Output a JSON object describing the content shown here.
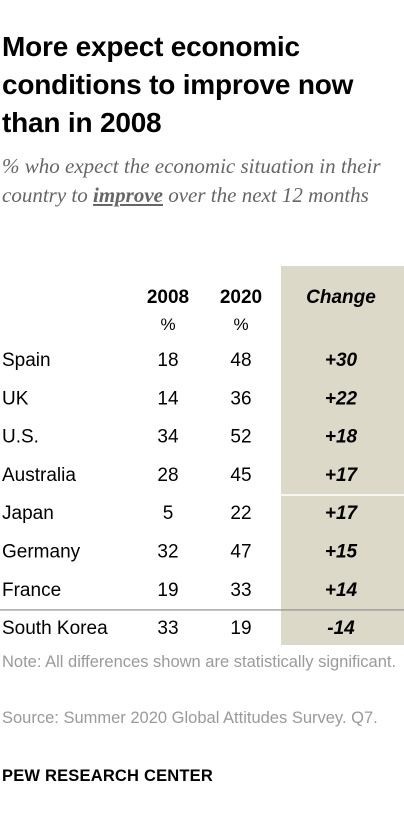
{
  "title": "More expect economic conditions to improve now than in 2008",
  "subtitle": {
    "before": "% who expect the economic situation in their country to ",
    "highlight": "improve",
    "after": " over the next 12 months"
  },
  "chart_data": {
    "type": "table",
    "columns": [
      "2008",
      "2020",
      "Change"
    ],
    "units": [
      "%",
      "%"
    ],
    "rows": [
      {
        "country": "Spain",
        "y2008": "18",
        "y2020": "48",
        "change": "+30"
      },
      {
        "country": "UK",
        "y2008": "14",
        "y2020": "36",
        "change": "+22"
      },
      {
        "country": "U.S.",
        "y2008": "34",
        "y2020": "52",
        "change": "+18"
      },
      {
        "country": "Australia",
        "y2008": "28",
        "y2020": "45",
        "change": "+17"
      },
      {
        "country": "Japan",
        "y2008": "5",
        "y2020": "22",
        "change": "+17"
      },
      {
        "country": "Germany",
        "y2008": "32",
        "y2020": "47",
        "change": "+15"
      },
      {
        "country": "France",
        "y2008": "19",
        "y2020": "33",
        "change": "+14"
      },
      {
        "country": "South Korea",
        "y2008": "33",
        "y2020": "19",
        "change": "-14"
      }
    ],
    "colors": {
      "change_bg": "#dcd9c9",
      "divider": "#8a8a8a",
      "note": "#9a9a9a"
    }
  },
  "notes": {
    "note": "Note: All differences shown are statistically significant.",
    "source": "Source: Summer 2020 Global Attitudes Survey. Q7."
  },
  "brand": "PEW RESEARCH CENTER"
}
